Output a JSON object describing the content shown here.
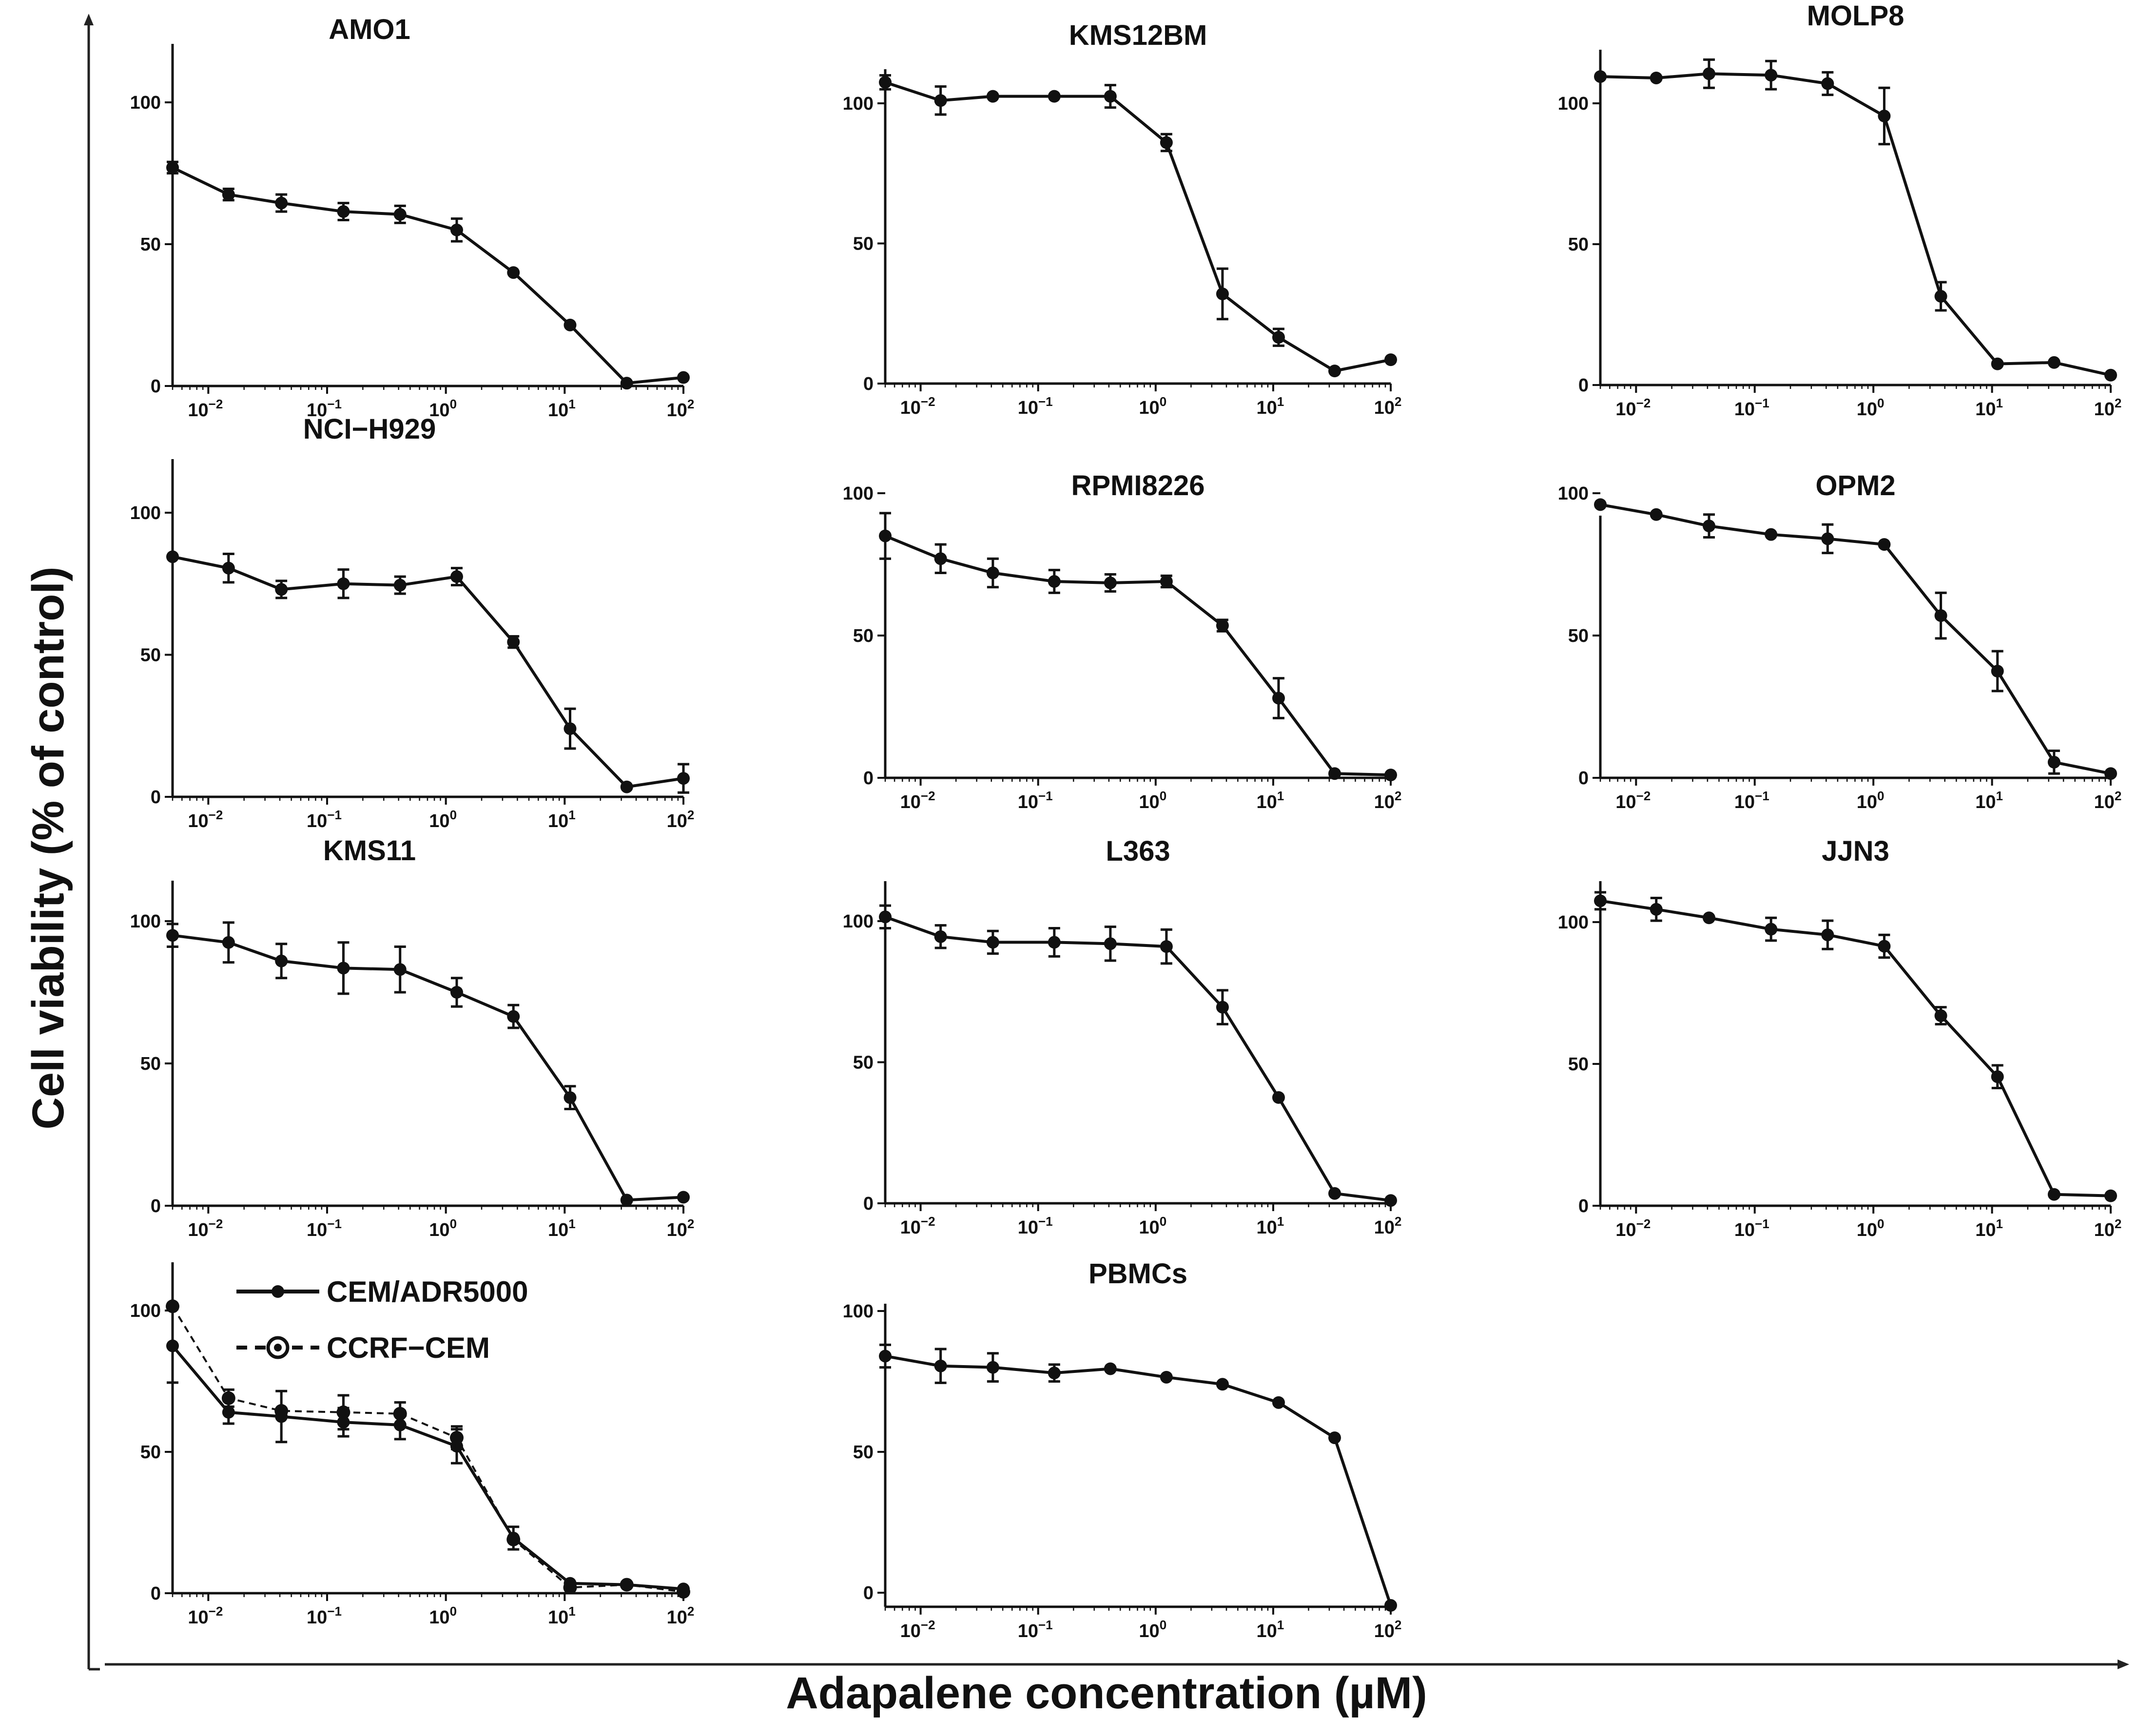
{
  "figure": {
    "ylabel": "Cell viability (% of control)",
    "xlabel": "Adapalene concentration (µM)"
  },
  "chart_data": [
    {
      "type": "line",
      "title": "AMO1",
      "xscale": "log",
      "x": [
        0.005,
        0.0148,
        0.0412,
        0.1372,
        0.4116,
        1.2346,
        3.7037,
        11.111,
        33.333,
        100
      ],
      "series": [
        {
          "name": "AMO1",
          "values": [
            77,
            67.5,
            64.5,
            61.5,
            60.5,
            55,
            40,
            21.5,
            1,
            3
          ],
          "errors": [
            2,
            2,
            3,
            3,
            3,
            4,
            0,
            0,
            0,
            0
          ],
          "style": "solid"
        }
      ],
      "yticks": [
        0,
        50,
        100
      ],
      "xticks": [
        "10^-2",
        "10^-1",
        "10^0",
        "10^1",
        "10^2"
      ],
      "ylim": [
        0,
        120
      ],
      "xlim": [
        0.005,
        100
      ]
    },
    {
      "type": "line",
      "title": "KMS12BM",
      "xscale": "log",
      "x": [
        0.005,
        0.0148,
        0.0412,
        0.1372,
        0.4116,
        1.2346,
        3.7037,
        11.111,
        33.333,
        100
      ],
      "series": [
        {
          "name": "KMS12BM",
          "values": [
            107.5,
            101,
            102.5,
            102.5,
            102.5,
            86,
            32,
            16.5,
            4.5,
            8.5
          ],
          "errors": [
            2.5,
            5,
            0,
            0,
            4,
            3,
            9,
            3,
            0,
            0
          ],
          "style": "solid"
        }
      ],
      "yticks": [
        0,
        50,
        100
      ],
      "xticks": [
        "10^-2",
        "10^-1",
        "10^0",
        "10^1",
        "10^2"
      ],
      "ylim": [
        0,
        117
      ],
      "xlim": [
        0.005,
        100
      ]
    },
    {
      "type": "line",
      "title": "MOLP8",
      "xscale": "log",
      "x": [
        0.005,
        0.0148,
        0.0412,
        0.1372,
        0.4116,
        1.2346,
        3.7037,
        11.111,
        33.333,
        100
      ],
      "series": [
        {
          "name": "MOLP8",
          "values": [
            109.5,
            109,
            110.5,
            110,
            107,
            95.5,
            31.5,
            7.5,
            8,
            3.5
          ],
          "errors": [
            0,
            0,
            5,
            5,
            4,
            10,
            5,
            0,
            0,
            0
          ],
          "style": "solid"
        }
      ],
      "yticks": [
        0,
        50,
        100
      ],
      "xticks": [
        "10^-2",
        "10^-1",
        "10^0",
        "10^1",
        "10^2"
      ],
      "ylim": [
        0,
        117
      ],
      "xlim": [
        0.005,
        100
      ]
    },
    {
      "type": "line",
      "title": "NCI−H929",
      "xscale": "log",
      "x": [
        0.005,
        0.0148,
        0.0412,
        0.1372,
        0.4116,
        1.2346,
        3.7037,
        11.111,
        33.333,
        100
      ],
      "series": [
        {
          "name": "NCI-H929",
          "values": [
            84.5,
            80.5,
            73,
            75,
            74.5,
            77.5,
            54.5,
            24,
            3.5,
            6.5
          ],
          "errors": [
            0,
            5,
            3,
            5,
            3,
            3,
            2,
            7,
            0,
            5
          ],
          "style": "solid"
        }
      ],
      "yticks": [
        0,
        50,
        100
      ],
      "xticks": [
        "10^-2",
        "10^-1",
        "10^0",
        "10^1",
        "10^2"
      ],
      "ylim": [
        0,
        112
      ],
      "xlim": [
        0.005,
        100
      ]
    },
    {
      "type": "line",
      "title": "RPMI8226",
      "xscale": "log",
      "x": [
        0.005,
        0.0148,
        0.0412,
        0.1372,
        0.4116,
        1.2346,
        3.7037,
        11.111,
        33.333,
        100
      ],
      "series": [
        {
          "name": "RPMI8226",
          "values": [
            85,
            77,
            72,
            69,
            68.5,
            69,
            53.5,
            28,
            1.5,
            1
          ],
          "errors": [
            8,
            5,
            5,
            4,
            3,
            2,
            2,
            7,
            0,
            0
          ],
          "style": "solid"
        }
      ],
      "yticks": [
        0,
        50,
        100
      ],
      "xticks": [
        "10^-2",
        "10^-1",
        "10^0",
        "10^1",
        "10^2"
      ],
      "ylim": [
        0,
        105
      ],
      "xlim": [
        0.005,
        100
      ]
    },
    {
      "type": "line",
      "title": "OPM2",
      "xscale": "log",
      "x": [
        0.005,
        0.0148,
        0.0412,
        0.1372,
        0.4116,
        1.2346,
        3.7037,
        11.111,
        33.333,
        100
      ],
      "series": [
        {
          "name": "OPM2",
          "values": [
            96,
            92.5,
            88.5,
            85.5,
            84,
            82,
            57,
            37.5,
            5.5,
            1.5
          ],
          "errors": [
            0,
            0,
            4,
            0,
            5,
            0,
            8,
            7,
            4,
            0
          ],
          "style": "solid"
        }
      ],
      "yticks": [
        0,
        50,
        100
      ],
      "xticks": [
        "10^-2",
        "10^-1",
        "10^0",
        "10^1",
        "10^2"
      ],
      "ylim": [
        0,
        105
      ],
      "xlim": [
        0.005,
        100
      ]
    },
    {
      "type": "line",
      "title": "KMS11",
      "xscale": "log",
      "x": [
        0.005,
        0.0148,
        0.0412,
        0.1372,
        0.4116,
        1.2346,
        3.7037,
        11.111,
        33.333,
        100
      ],
      "series": [
        {
          "name": "KMS11",
          "values": [
            95,
            92.5,
            86,
            83.5,
            83,
            75,
            66.5,
            38,
            2,
            3
          ],
          "errors": [
            4,
            7,
            6,
            9,
            8,
            5,
            4,
            4,
            0,
            0
          ],
          "style": "solid"
        }
      ],
      "yticks": [
        0,
        50,
        100
      ],
      "xticks": [
        "10^-2",
        "10^-1",
        "10^0",
        "10^1",
        "10^2"
      ],
      "ylim": [
        0,
        115
      ],
      "xlim": [
        0.005,
        100
      ]
    },
    {
      "type": "line",
      "title": "L363",
      "xscale": "log",
      "x": [
        0.005,
        0.0148,
        0.0412,
        0.1372,
        0.4116,
        1.2346,
        3.7037,
        11.111,
        33.333,
        100
      ],
      "series": [
        {
          "name": "L363",
          "values": [
            101.5,
            94.5,
            92.5,
            92.5,
            92,
            91,
            69.5,
            37.5,
            3.5,
            1
          ],
          "errors": [
            4,
            4,
            4,
            5,
            6,
            6,
            6,
            0,
            0,
            0
          ],
          "style": "solid"
        }
      ],
      "yticks": [
        0,
        50,
        100
      ],
      "xticks": [
        "10^-2",
        "10^-1",
        "10^0",
        "10^1",
        "10^2"
      ],
      "ylim": [
        0,
        115
      ],
      "xlim": [
        0.005,
        100
      ]
    },
    {
      "type": "line",
      "title": "JJN3",
      "xscale": "log",
      "x": [
        0.005,
        0.0148,
        0.0412,
        0.1372,
        0.4116,
        1.2346,
        3.7037,
        11.111,
        33.333,
        100
      ],
      "series": [
        {
          "name": "JJN3",
          "values": [
            107.5,
            104.5,
            101.5,
            97.5,
            95.5,
            91.5,
            67,
            45.5,
            4,
            3.5
          ],
          "errors": [
            3,
            4,
            0,
            4,
            5,
            4,
            3,
            4,
            0,
            0
          ],
          "style": "solid"
        }
      ],
      "yticks": [
        0,
        50,
        100
      ],
      "xticks": [
        "10^-2",
        "10^-1",
        "10^0",
        "10^1",
        "10^2"
      ],
      "ylim": [
        0,
        115
      ],
      "xlim": [
        0.005,
        100
      ]
    },
    {
      "type": "line",
      "title": "",
      "xscale": "log",
      "x": [
        0.005,
        0.0148,
        0.0412,
        0.1372,
        0.4116,
        1.2346,
        3.7037,
        11.111,
        33.333,
        100
      ],
      "series": [
        {
          "name": "CEM/ADR5000",
          "values": [
            87.5,
            64,
            62.5,
            60.5,
            59.5,
            52,
            19.5,
            3.5,
            3,
            1.5
          ],
          "errors": [
            13,
            4,
            9,
            5,
            5,
            6,
            4,
            0,
            0,
            0
          ],
          "style": "solid"
        },
        {
          "name": "CCRF−CEM",
          "values": [
            101.5,
            69,
            64.5,
            64,
            63.5,
            55,
            19,
            2,
            3,
            0.5
          ],
          "errors": [
            0,
            3,
            0,
            6,
            4,
            4,
            0,
            0,
            0,
            0
          ],
          "style": "dashed"
        }
      ],
      "legend": [
        "CEM/ADR5000",
        "CCRF−CEM"
      ],
      "legend_position": "top-right",
      "yticks": [
        0,
        50,
        100
      ],
      "xticks": [
        "10^-2",
        "10^-1",
        "10^0",
        "10^1",
        "10^2"
      ],
      "ylim": [
        0,
        117
      ],
      "xlim": [
        0.005,
        100
      ]
    },
    {
      "type": "line",
      "title": "PBMCs",
      "xscale": "log",
      "x": [
        0.005,
        0.0148,
        0.0412,
        0.1372,
        0.4116,
        1.2346,
        3.7037,
        11.111,
        33.333,
        100
      ],
      "series": [
        {
          "name": "PBMCs",
          "values": [
            84,
            80.5,
            80,
            78,
            79.5,
            76.5,
            74,
            67.5,
            55,
            -4.5
          ],
          "errors": [
            4,
            6,
            5,
            3,
            0,
            0,
            0,
            0,
            0,
            0
          ],
          "style": "solid"
        }
      ],
      "yticks": [
        0,
        50,
        100
      ],
      "xticks": [
        "10^-2",
        "10^-1",
        "10^0",
        "10^1",
        "10^2"
      ],
      "ylim": [
        -5,
        105
      ],
      "xlim": [
        0.005,
        100
      ]
    }
  ]
}
